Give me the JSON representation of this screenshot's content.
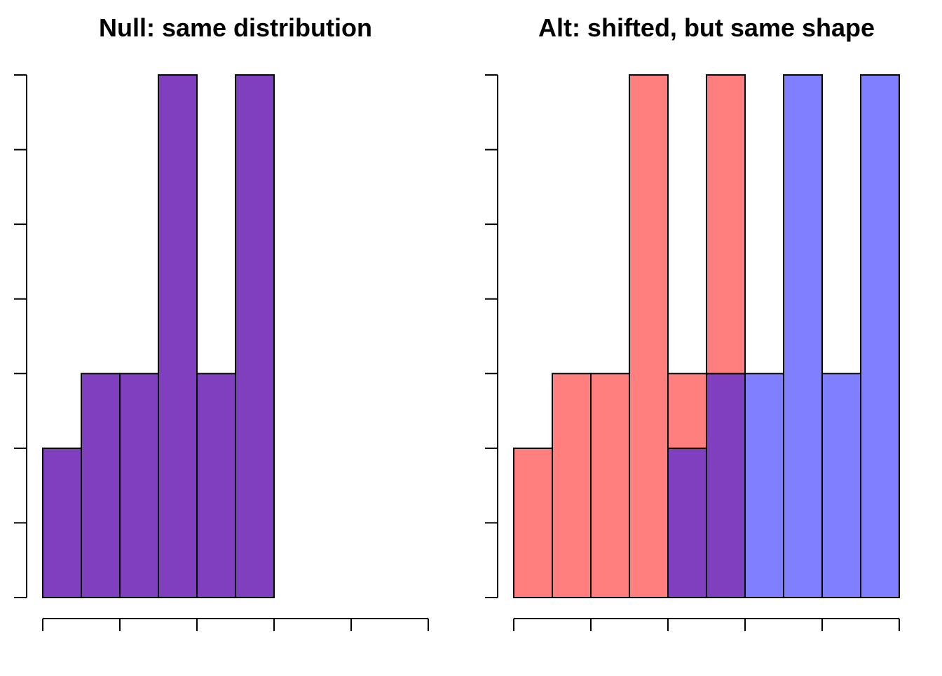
{
  "chart_data": [
    {
      "type": "bar",
      "title": "Null: same distribution",
      "xlabel": "",
      "ylabel": "",
      "bins": [
        0,
        1,
        2,
        3,
        4,
        5,
        6
      ],
      "xlim": [
        0,
        10
      ],
      "ylim": [
        0,
        7
      ],
      "x_ticks": [
        0,
        2,
        4,
        6,
        8,
        10
      ],
      "y_ticks": [
        0,
        1,
        2,
        3,
        4,
        5,
        6,
        7
      ],
      "tick_labels_shown": false,
      "grid": false,
      "series": [
        {
          "counts": [
            2,
            3,
            3,
            7,
            3,
            7
          ],
          "color": "#7F3FBF"
        }
      ]
    },
    {
      "type": "bar",
      "title": "Alt: shifted, but same shape",
      "xlabel": "",
      "ylabel": "",
      "bins": [
        0,
        1,
        2,
        3,
        4,
        5,
        6,
        7,
        8,
        9,
        10
      ],
      "xlim": [
        0,
        10
      ],
      "ylim": [
        0,
        7
      ],
      "x_ticks": [
        0,
        2,
        4,
        6,
        8,
        10
      ],
      "y_ticks": [
        0,
        1,
        2,
        3,
        4,
        5,
        6,
        7
      ],
      "tick_labels_shown": false,
      "grid": false,
      "series": [
        {
          "counts": [
            2,
            3,
            3,
            7,
            3,
            7,
            0,
            0,
            0,
            0
          ],
          "color": "#FF7F7F"
        },
        {
          "counts": [
            0,
            0,
            0,
            0,
            2,
            3,
            3,
            7,
            3,
            7
          ],
          "color": "#7F7FFF"
        }
      ],
      "overlap_color": "#7F3FBF"
    }
  ]
}
